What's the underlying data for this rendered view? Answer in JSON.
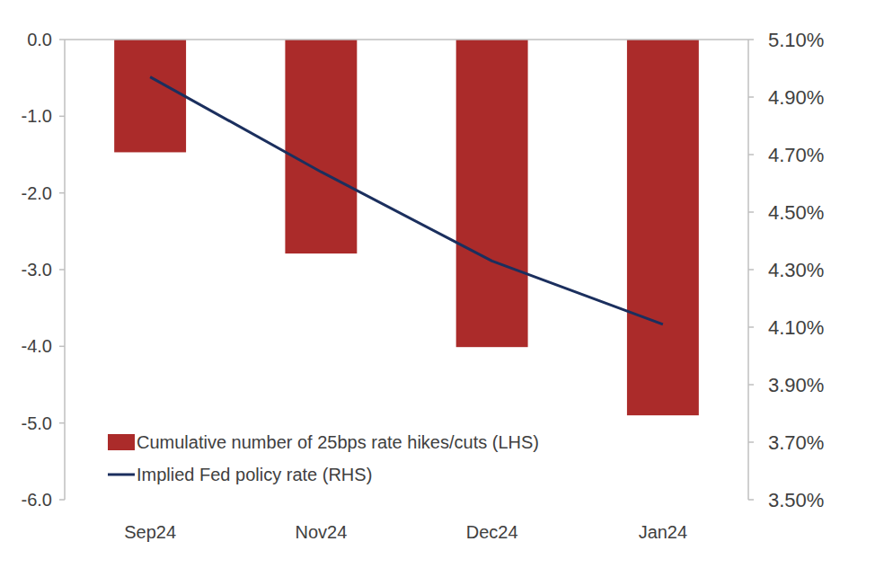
{
  "chart_data": {
    "type": "bar",
    "categories": [
      "Sep24",
      "Nov24",
      "Dec24",
      "Jan24"
    ],
    "series": [
      {
        "name": "Cumulative number of 25bps rate hikes/cuts (LHS)",
        "type": "bar",
        "color": "#ab2b2a",
        "values": [
          -1.47,
          -2.79,
          -4.01,
          -4.9
        ]
      },
      {
        "name": "Implied Fed policy rate (RHS)",
        "type": "line",
        "axis": "y2",
        "color": "#1b2f5e",
        "values": [
          4.97,
          4.64,
          4.33,
          4.11
        ]
      }
    ],
    "ylim": [
      -6,
      0
    ],
    "yticks": [
      {
        "value": -6,
        "label": "-6.0"
      },
      {
        "value": -5,
        "label": "-5.0"
      },
      {
        "value": -4,
        "label": "-4.0"
      },
      {
        "value": -3,
        "label": "-3.0"
      },
      {
        "value": -2,
        "label": "-2.0"
      },
      {
        "value": -1,
        "label": "-1.0"
      },
      {
        "value": 0,
        "label": "0.0"
      }
    ],
    "y2lim": [
      3.5,
      5.1
    ],
    "y2ticks": [
      {
        "value": 3.5,
        "label": "3.50%"
      },
      {
        "value": 3.7,
        "label": "3.70%"
      },
      {
        "value": 3.9,
        "label": "3.90%"
      },
      {
        "value": 4.1,
        "label": "4.10%"
      },
      {
        "value": 4.3,
        "label": "4.30%"
      },
      {
        "value": 4.5,
        "label": "4.50%"
      },
      {
        "value": 4.7,
        "label": "4.70%"
      },
      {
        "value": 4.9,
        "label": "4.90%"
      },
      {
        "value": 5.1,
        "label": "5.10%"
      }
    ],
    "grid": false,
    "legend": "lower left"
  }
}
